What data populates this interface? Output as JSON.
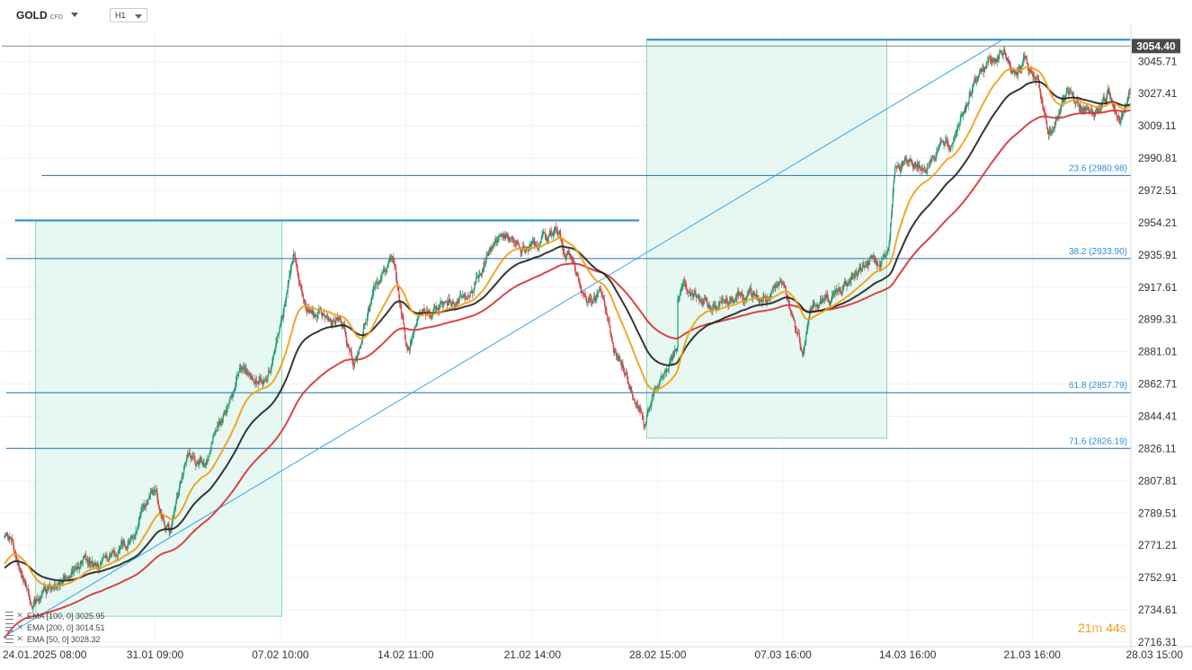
{
  "toolbar": {
    "symbol": "GOLD",
    "symbol_type": "CFD",
    "timeframe": "H1"
  },
  "current_price_label": "3054.40",
  "countdown": {
    "minutes": "21",
    "minutes_unit": "m",
    "seconds": "44",
    "seconds_unit": "s"
  },
  "legend": [
    {
      "label": "EMA [100, 0] 3025.95"
    },
    {
      "label": "EMA [200, 0] 3014.51"
    },
    {
      "label": "EMA [50, 0] 3028.32"
    }
  ],
  "colors": {
    "up_candle": "#1e9b6e",
    "down_candle": "#d04545",
    "ema50": "#f39c12",
    "ema100": "#1f1f1f",
    "ema200": "#d63031",
    "fib_line": "#2b6cb0",
    "fib_label": "#2d8fd8",
    "box_fill": "#e2f7ee",
    "box_border": "#8fd6b4",
    "trend_line": "#3aa3e8",
    "price_tag": "#4a4a4a"
  },
  "chart_data": {
    "type": "candlestick",
    "symbol": "GOLD",
    "timeframe": "H1",
    "y_axis": {
      "range": [
        2716.31,
        3063.7
      ],
      "ticks": [
        3045.71,
        3027.41,
        3009.11,
        2990.81,
        2972.51,
        2954.21,
        2935.91,
        2917.61,
        2899.31,
        2881.01,
        2862.71,
        2844.41,
        2826.11,
        2807.81,
        2789.51,
        2771.21,
        2752.91,
        2734.61,
        2716.31
      ]
    },
    "x_axis": {
      "range": [
        "2025-01-23",
        "2025-03-28 15:00"
      ],
      "ticks": [
        "24.01.2025 08:00",
        "31.01 09:00",
        "07.02 10:00",
        "14.02 11:00",
        "21.02 14:00",
        "28.02 15:00",
        "07.03 16:00",
        "14.03 16:00",
        "21.03 16:00",
        "28.03 15:00"
      ]
    },
    "price_path": [
      [
        "2025-01-22 22:00",
        2777
      ],
      [
        "2025-01-23 06:00",
        2772
      ],
      [
        "2025-01-23 16:00",
        2760
      ],
      [
        "2025-01-24 04:00",
        2745
      ],
      [
        "2025-01-24 12:00",
        2738
      ],
      [
        "2025-01-25 06:00",
        2745
      ],
      [
        "2025-01-26 20:00",
        2755
      ],
      [
        "2025-01-27 12:00",
        2762
      ],
      [
        "2025-01-28 00:00",
        2758
      ],
      [
        "2025-01-29 18:00",
        2769
      ],
      [
        "2025-01-30 16:00",
        2793
      ],
      [
        "2025-01-31 08:00",
        2800
      ],
      [
        "2025-02-01 05:00",
        2778
      ],
      [
        "2025-02-02 04:00",
        2822
      ],
      [
        "2025-02-03 04:00",
        2818
      ],
      [
        "2025-02-04 02:00",
        2843
      ],
      [
        "2025-02-05 06:00",
        2873
      ],
      [
        "2025-02-06 04:00",
        2863
      ],
      [
        "2025-02-06 20:00",
        2873
      ],
      [
        "2025-02-07 14:00",
        2903
      ],
      [
        "2025-02-08 04:00",
        2935
      ],
      [
        "2025-02-08 22:00",
        2903
      ],
      [
        "2025-02-10 20:00",
        2897
      ],
      [
        "2025-02-11 13:00",
        2873
      ],
      [
        "2025-02-12 15:00",
        2913
      ],
      [
        "2025-02-13 18:00",
        2937
      ],
      [
        "2025-02-14 13:00",
        2880
      ],
      [
        "2025-02-15 11:00",
        2902
      ],
      [
        "2025-02-16 21:00",
        2908
      ],
      [
        "2025-02-18 01:00",
        2913
      ],
      [
        "2025-02-19 06:00",
        2941
      ],
      [
        "2025-02-19 21:00",
        2948
      ],
      [
        "2025-02-20 20:00",
        2938
      ],
      [
        "2025-02-22 00:00",
        2943
      ],
      [
        "2025-02-22 21:00",
        2950
      ],
      [
        "2025-02-23 17:00",
        2935
      ],
      [
        "2025-02-24 13:00",
        2908
      ],
      [
        "2025-02-25 09:00",
        2915
      ],
      [
        "2025-02-26 07:00",
        2880
      ],
      [
        "2025-02-27 03:00",
        2863
      ],
      [
        "2025-02-27 21:00",
        2841
      ],
      [
        "2025-02-28 17:00",
        2865
      ],
      [
        "2025-02-29 17:00",
        2881
      ],
      [
        "2025-03-01 07:00",
        2890
      ],
      [
        "2025-03-02 00:00",
        2918
      ],
      [
        "2025-03-03 15:00",
        2905
      ],
      [
        "2025-03-05 03:00",
        2915
      ],
      [
        "2025-03-06 16:00",
        2910
      ],
      [
        "2025-03-07 16:00",
        2918
      ],
      [
        "2025-03-08 18:00",
        2882
      ],
      [
        "2025-03-09 04:00",
        2905
      ],
      [
        "2025-03-10 16:00",
        2913
      ],
      [
        "2025-03-12 08:00",
        2932
      ],
      [
        "2025-03-13 14:00",
        2937
      ],
      [
        "2025-03-13 23:00",
        2985
      ],
      [
        "2025-03-14 20:00",
        2990
      ],
      [
        "2025-03-15 15:00",
        2985
      ],
      [
        "2025-03-16 12:00",
        3000
      ],
      [
        "2025-03-17 01:00",
        2995
      ],
      [
        "2025-03-17 15:00",
        3015
      ],
      [
        "2025-03-18 07:00",
        3030
      ],
      [
        "2025-03-19 03:00",
        3045
      ],
      [
        "2025-03-20 00:00",
        3052
      ],
      [
        "2025-03-20 18:00",
        3038
      ],
      [
        "2025-03-21 06:00",
        3045
      ],
      [
        "2025-03-22 01:00",
        3030
      ],
      [
        "2025-03-22 14:00",
        3005
      ],
      [
        "2025-03-23 16:00",
        3025
      ],
      [
        "2025-03-25 02:00",
        3015
      ],
      [
        "2025-03-25 22:00",
        3028
      ],
      [
        "2025-03-26 14:00",
        3015
      ],
      [
        "2025-03-27 02:00",
        3028
      ],
      [
        "2025-03-28 00:00",
        3040
      ],
      [
        "2025-03-28 08:00",
        3052
      ]
    ],
    "last_price": 3054.4,
    "horizontal_lines": [
      {
        "price": 3054.4,
        "color": "#888888"
      }
    ],
    "series": [
      {
        "name": "EMA [50, 0]",
        "last": 3028.32
      },
      {
        "name": "EMA [100, 0]",
        "last": 3025.95
      },
      {
        "name": "EMA [200, 0]",
        "last": 3014.51
      }
    ],
    "fibonacci": [
      {
        "label": "23.6 (2980.98)",
        "price": 2980.98
      },
      {
        "label": "38.2 (2933.90)",
        "price": 2933.9
      },
      {
        "label": "61.8 (2857.79)",
        "price": 2857.79
      },
      {
        "label": "71.6 (2826.19)",
        "price": 2826.19
      }
    ],
    "fib_line_starts": [
      "2025-01-25 00:00",
      "2025-01-23 00:00",
      "2025-01-23 00:00",
      "2025-01-23 00:00"
    ],
    "resistance_lines": [
      {
        "from": "2025-01-23 12:00",
        "to": "2025-02-27 14:00",
        "price": 2955.5
      },
      {
        "from": "2025-02-28 00:00",
        "to": "2025-03-28 20:00",
        "price": 3058
      }
    ],
    "boxes": [
      {
        "from": "2025-01-24 16:00",
        "to": "2025-02-07 12:00",
        "top": 2955.5,
        "bottom": 2731.0
      },
      {
        "from": "2025-02-28 00:00",
        "to": "2025-03-13 12:00",
        "top": 3058.0,
        "bottom": 2832.0
      }
    ],
    "trend_line": {
      "from": [
        "2025-01-22 20:00",
        2719
      ],
      "to": [
        "2025-03-20 00:00",
        3058
      ]
    },
    "legend_position": "bottom-left"
  }
}
